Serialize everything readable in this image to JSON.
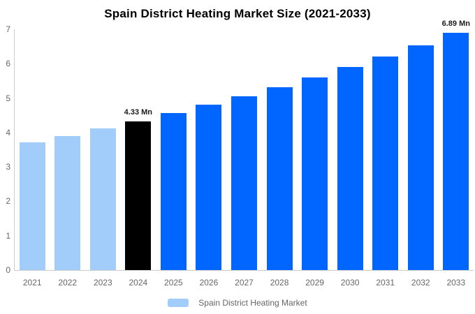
{
  "chart_data": {
    "type": "bar",
    "title": "Spain District Heating Market Size (2021-2033)",
    "xlabel": "",
    "ylabel": "",
    "unit": "Mn",
    "categories": [
      "2021",
      "2022",
      "2023",
      "2024",
      "2025",
      "2026",
      "2027",
      "2028",
      "2029",
      "2030",
      "2031",
      "2032",
      "2033"
    ],
    "values": [
      3.71,
      3.9,
      4.11,
      4.33,
      4.56,
      4.8,
      5.05,
      5.32,
      5.6,
      5.9,
      6.21,
      6.54,
      6.89
    ],
    "bar_colors": [
      "#a2ccfa",
      "#a2ccfa",
      "#a2ccfa",
      "#000000",
      "#0066ff",
      "#0066ff",
      "#0066ff",
      "#0066ff",
      "#0066ff",
      "#0066ff",
      "#0066ff",
      "#0066ff",
      "#0066ff"
    ],
    "annotations": [
      {
        "category": "2024",
        "text": "4.33 Mn"
      },
      {
        "category": "2033",
        "text": "6.89 Mn"
      }
    ],
    "ylim": [
      0,
      7
    ],
    "y_ticks": [
      0,
      1,
      2,
      3,
      4,
      5,
      6,
      7
    ],
    "grid": false,
    "legend": {
      "position": "bottom-center",
      "label": "Spain District Heating Market",
      "swatch_color": "#a2ccfa"
    },
    "colors": {
      "historical": "#a2ccfa",
      "base_year": "#000000",
      "forecast": "#0066ff",
      "axis_line": "#cccccc",
      "tick_label": "#666666",
      "annotation": "#1a1a1a",
      "background": "#ffffff"
    }
  }
}
